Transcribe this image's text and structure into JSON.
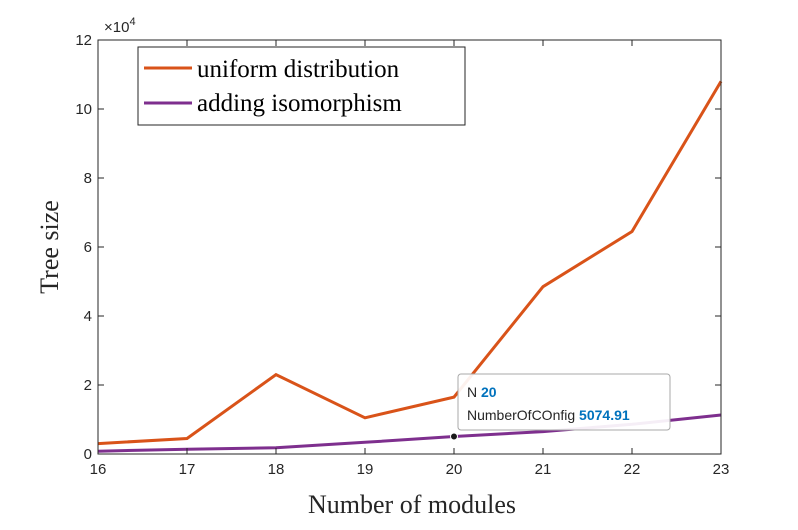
{
  "chart_data": {
    "type": "line",
    "x": [
      16,
      17,
      18,
      19,
      20,
      21,
      22,
      23
    ],
    "xlabel": "Number of modules",
    "ylabel": "Tree size",
    "xlim": [
      16,
      23
    ],
    "ylim": [
      0,
      120000
    ],
    "xticks": [
      "16",
      "17",
      "18",
      "19",
      "20",
      "21",
      "22",
      "23"
    ],
    "yticks": [
      "0",
      "2",
      "4",
      "6",
      "8",
      "10",
      "12"
    ],
    "exponent_label": "×10",
    "exponent_power": "4",
    "grid": false,
    "legend_position": "top-left",
    "series": [
      {
        "name": "uniform distribution",
        "color": "#D95319",
        "values": [
          3000,
          4500,
          23000,
          10500,
          16500,
          48500,
          64500,
          108000
        ]
      },
      {
        "name": "adding isomorphism",
        "color": "#7E2F8E",
        "values": [
          800,
          1400,
          1800,
          3400,
          5074.91,
          6500,
          8600,
          11300
        ]
      }
    ],
    "datatip": {
      "x_label": "N",
      "x_value": "20",
      "y_label": "NumberOfCOnfig",
      "y_value": "5074.91",
      "value_color": "#0072BD"
    }
  }
}
